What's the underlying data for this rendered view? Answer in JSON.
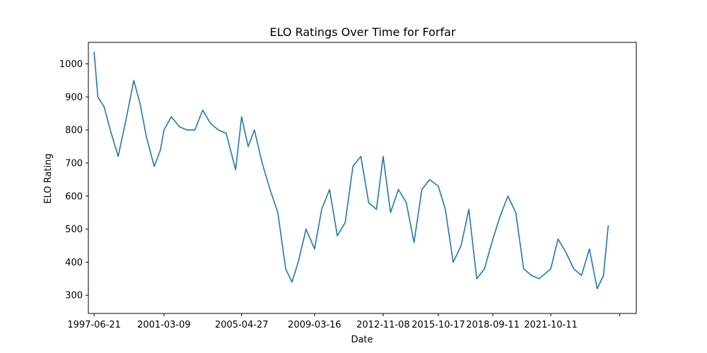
{
  "chart_data": {
    "type": "line",
    "title": "ELO Ratings Over Time for Forfar",
    "xlabel": "Date",
    "ylabel": "ELO Rating",
    "x_tick_labels": [
      "1997-06-21",
      "2001-03-09",
      "2005-04-27",
      "2009-03-16",
      "2012-11-08",
      "2015-10-17",
      "2018-09-11",
      "2021-10-11",
      ""
    ],
    "y_tick_labels": [
      "300",
      "400",
      "500",
      "600",
      "700",
      "800",
      "900",
      "1000"
    ],
    "xlim": [
      "1997-03-01",
      "2026-05-01"
    ],
    "ylim": [
      245,
      1065
    ],
    "grid": false,
    "legend": "none",
    "series": [
      {
        "color": "#1f77b4",
        "x": [
          "1997-06-21",
          "1997-09-01",
          "1998-01-01",
          "1998-05-01",
          "1998-10-01",
          "1999-03-01",
          "1999-08-01",
          "1999-12-01",
          "2000-04-01",
          "2000-09-01",
          "2001-01-01",
          "2001-03-09",
          "2001-08-01",
          "2002-01-01",
          "2002-06-01",
          "2002-11-01",
          "2003-04-01",
          "2003-09-01",
          "2004-02-01",
          "2004-07-01",
          "2005-01-01",
          "2005-04-27",
          "2005-09-01",
          "2006-01-01",
          "2006-06-01",
          "2006-11-01",
          "2007-04-01",
          "2007-09-01",
          "2008-01-01",
          "2008-05-01",
          "2008-10-01",
          "2009-03-16",
          "2009-08-01",
          "2010-01-01",
          "2010-06-01",
          "2010-11-01",
          "2011-04-01",
          "2011-09-01",
          "2012-02-01",
          "2012-07-01",
          "2012-11-08",
          "2013-04-01",
          "2013-09-01",
          "2014-02-01",
          "2014-07-01",
          "2014-12-01",
          "2015-05-01",
          "2015-10-17",
          "2016-03-01",
          "2016-08-01",
          "2017-01-01",
          "2017-06-01",
          "2017-11-01",
          "2018-04-01",
          "2018-09-11",
          "2019-02-01",
          "2019-07-01",
          "2019-12-01",
          "2020-05-01",
          "2020-10-01",
          "2021-03-01",
          "2021-10-11",
          "2022-03-01",
          "2022-08-01",
          "2023-01-01",
          "2023-06-01",
          "2023-11-01",
          "2024-04-01",
          "2024-08-01",
          "2024-11-01"
        ],
        "y": [
          1035,
          900,
          870,
          800,
          720,
          830,
          950,
          880,
          780,
          690,
          740,
          800,
          840,
          810,
          800,
          800,
          860,
          820,
          800,
          790,
          680,
          840,
          750,
          800,
          700,
          620,
          550,
          380,
          340,
          400,
          500,
          440,
          560,
          620,
          480,
          520,
          690,
          720,
          580,
          560,
          720,
          550,
          620,
          580,
          460,
          620,
          650,
          630,
          560,
          400,
          450,
          560,
          350,
          380,
          470,
          540,
          600,
          550,
          380,
          360,
          350,
          380,
          470,
          430,
          380,
          360,
          440,
          320,
          360,
          510
        ]
      }
    ]
  }
}
